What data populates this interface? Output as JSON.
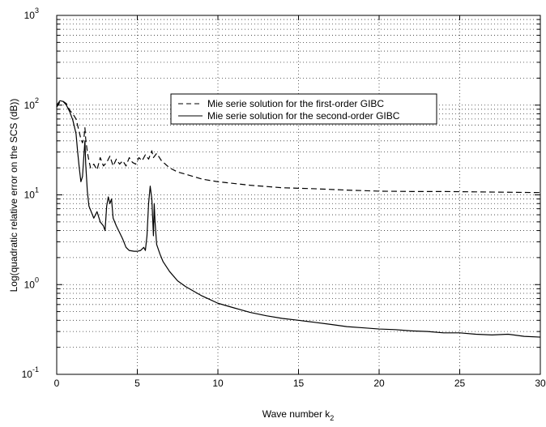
{
  "chart_data": {
    "type": "line",
    "title": "",
    "xlabel": "Wave number k",
    "xlabel_sub": "2",
    "ylabel": "Log(quadratic relative error on the SCS (dB))",
    "xlim": [
      0,
      30
    ],
    "ylim": [
      0.1,
      1000
    ],
    "yscale": "log",
    "grid": true,
    "legend_position": "upper-center",
    "x_ticks": [
      "0",
      "5",
      "10",
      "15",
      "20",
      "25",
      "30"
    ],
    "y_tick_bases": [
      "10",
      "10",
      "10",
      "10",
      "10"
    ],
    "y_tick_exps": [
      "-1",
      "0",
      "1",
      "2",
      "3"
    ],
    "series": [
      {
        "name": "Mie serie solution for the first-order GIBC",
        "style": "dashed",
        "color": "#000000",
        "points": [
          [
            0.0,
            95
          ],
          [
            0.2,
            108
          ],
          [
            0.4,
            110
          ],
          [
            0.6,
            104
          ],
          [
            0.8,
            88
          ],
          [
            1.0,
            80
          ],
          [
            1.2,
            70
          ],
          [
            1.4,
            50
          ],
          [
            1.5,
            42
          ],
          [
            1.6,
            38
          ],
          [
            1.7,
            45
          ],
          [
            1.75,
            56
          ],
          [
            1.8,
            42
          ],
          [
            1.9,
            30
          ],
          [
            2.0,
            24
          ],
          [
            2.1,
            20
          ],
          [
            2.3,
            22
          ],
          [
            2.5,
            19
          ],
          [
            2.7,
            26
          ],
          [
            2.9,
            21
          ],
          [
            3.1,
            23
          ],
          [
            3.3,
            27
          ],
          [
            3.5,
            21
          ],
          [
            3.7,
            25
          ],
          [
            3.9,
            22
          ],
          [
            4.1,
            24
          ],
          [
            4.3,
            21
          ],
          [
            4.5,
            26
          ],
          [
            4.7,
            23
          ],
          [
            4.9,
            22
          ],
          [
            5.1,
            26
          ],
          [
            5.3,
            24
          ],
          [
            5.5,
            28
          ],
          [
            5.7,
            25
          ],
          [
            5.9,
            31
          ],
          [
            6.0,
            26
          ],
          [
            6.2,
            29
          ],
          [
            6.5,
            24
          ],
          [
            7.0,
            20
          ],
          [
            7.5,
            18
          ],
          [
            8.0,
            17
          ],
          [
            9.0,
            15
          ],
          [
            10.0,
            14
          ],
          [
            12.0,
            12.8
          ],
          [
            14.0,
            12
          ],
          [
            16.0,
            11.7
          ],
          [
            18.0,
            11.3
          ],
          [
            20.0,
            11.0
          ],
          [
            22.0,
            10.9
          ],
          [
            24.0,
            10.9
          ],
          [
            26.0,
            10.8
          ],
          [
            28.0,
            10.7
          ],
          [
            30.0,
            10.6
          ]
        ]
      },
      {
        "name": "Mie serie solution for the second-order GIBC",
        "style": "solid",
        "color": "#000000",
        "points": [
          [
            0.0,
            100
          ],
          [
            0.2,
            112
          ],
          [
            0.4,
            110
          ],
          [
            0.6,
            100
          ],
          [
            0.8,
            85
          ],
          [
            1.0,
            68
          ],
          [
            1.2,
            48
          ],
          [
            1.3,
            30
          ],
          [
            1.4,
            20
          ],
          [
            1.5,
            14
          ],
          [
            1.6,
            16
          ],
          [
            1.7,
            30
          ],
          [
            1.75,
            40
          ],
          [
            1.8,
            22
          ],
          [
            1.9,
            11
          ],
          [
            2.0,
            7.5
          ],
          [
            2.3,
            5.5
          ],
          [
            2.5,
            6.5
          ],
          [
            2.7,
            5.0
          ],
          [
            2.9,
            4.5
          ],
          [
            3.0,
            4.0
          ],
          [
            3.1,
            7.5
          ],
          [
            3.2,
            9.5
          ],
          [
            3.3,
            8.0
          ],
          [
            3.4,
            9.0
          ],
          [
            3.5,
            5.5
          ],
          [
            3.7,
            4.5
          ],
          [
            3.9,
            3.8
          ],
          [
            4.1,
            3.2
          ],
          [
            4.3,
            2.6
          ],
          [
            4.5,
            2.4
          ],
          [
            4.8,
            2.35
          ],
          [
            5.0,
            2.35
          ],
          [
            5.2,
            2.4
          ],
          [
            5.4,
            2.6
          ],
          [
            5.5,
            2.4
          ],
          [
            5.6,
            3.5
          ],
          [
            5.7,
            8.0
          ],
          [
            5.8,
            12.5
          ],
          [
            5.9,
            9.0
          ],
          [
            6.0,
            3.5
          ],
          [
            6.05,
            8.0
          ],
          [
            6.1,
            5.0
          ],
          [
            6.2,
            2.8
          ],
          [
            6.4,
            2.2
          ],
          [
            6.6,
            1.8
          ],
          [
            7.0,
            1.4
          ],
          [
            7.5,
            1.1
          ],
          [
            8.0,
            0.95
          ],
          [
            9.0,
            0.75
          ],
          [
            10.0,
            0.62
          ],
          [
            11.0,
            0.55
          ],
          [
            12.0,
            0.49
          ],
          [
            13.0,
            0.45
          ],
          [
            14.0,
            0.42
          ],
          [
            15.0,
            0.4
          ],
          [
            16.0,
            0.38
          ],
          [
            17.0,
            0.36
          ],
          [
            18.0,
            0.34
          ],
          [
            19.0,
            0.33
          ],
          [
            20.0,
            0.32
          ],
          [
            21.0,
            0.315
          ],
          [
            22.0,
            0.305
          ],
          [
            23.0,
            0.3
          ],
          [
            24.0,
            0.29
          ],
          [
            25.0,
            0.29
          ],
          [
            26.0,
            0.28
          ],
          [
            27.0,
            0.275
          ],
          [
            28.0,
            0.28
          ],
          [
            29.0,
            0.265
          ],
          [
            30.0,
            0.26
          ]
        ]
      }
    ]
  }
}
